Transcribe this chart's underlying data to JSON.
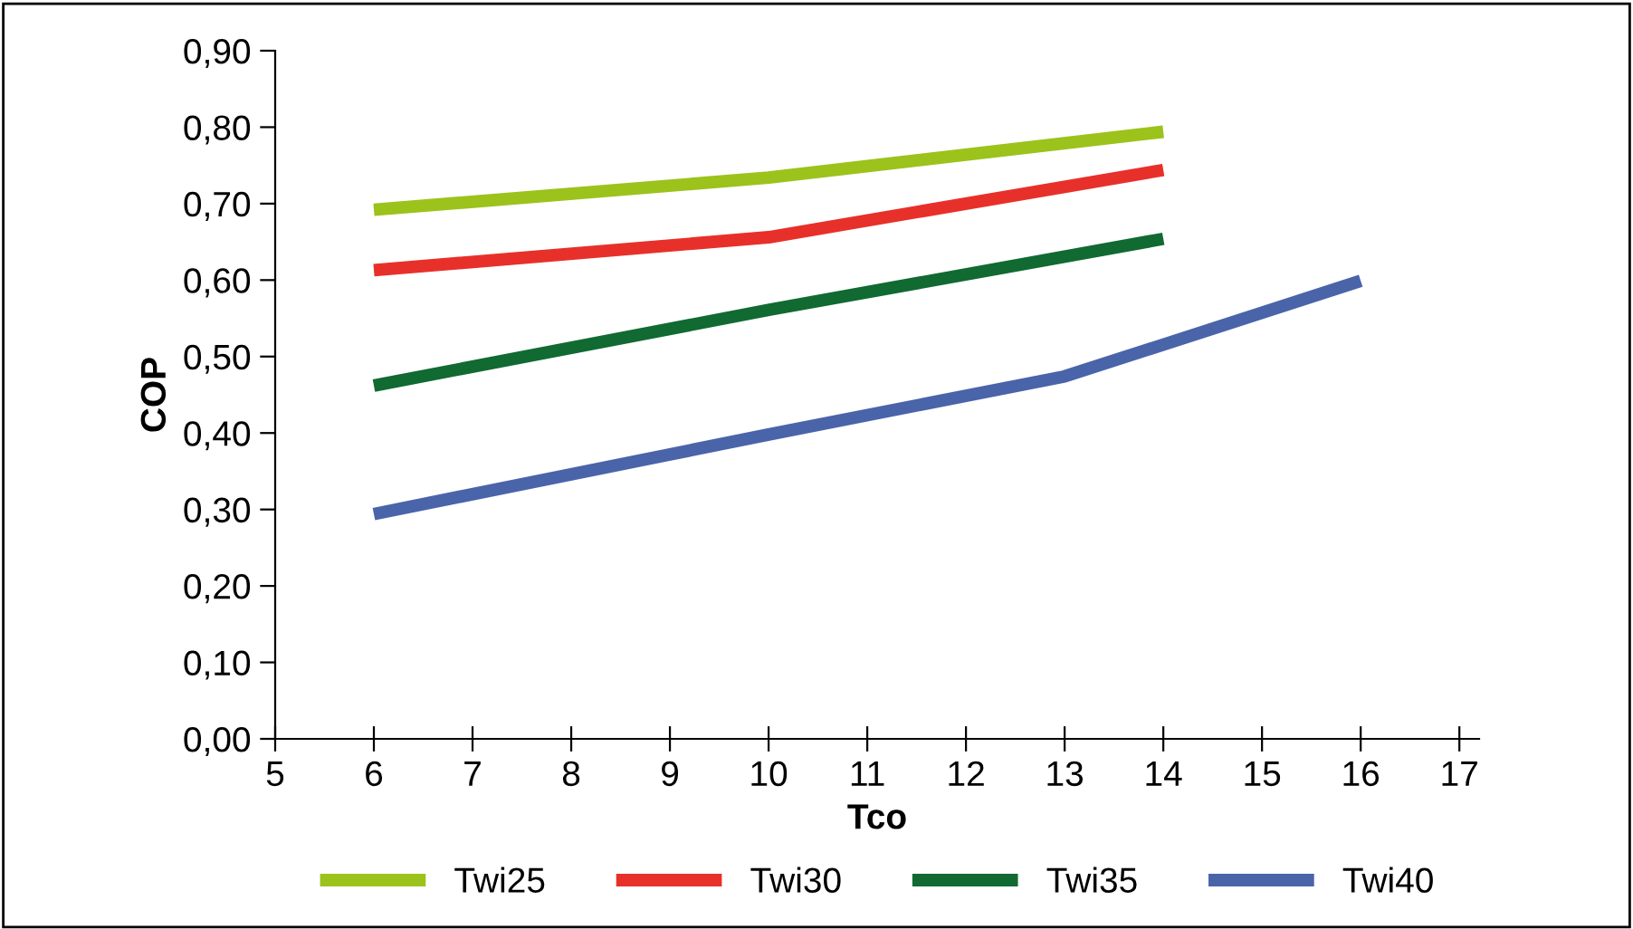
{
  "chart_data": {
    "type": "line",
    "xlabel": "Tco",
    "ylabel": "COP",
    "series": [
      {
        "name": "Twi25",
        "color": "#9bc31c",
        "x": [
          6,
          10,
          14
        ],
        "values": [
          0.692,
          0.734,
          0.794
        ]
      },
      {
        "name": "Twi30",
        "color": "#e8302a",
        "x": [
          6,
          10,
          14
        ],
        "values": [
          0.613,
          0.656,
          0.744
        ]
      },
      {
        "name": "Twi35",
        "color": "#106a32",
        "x": [
          6,
          10,
          14
        ],
        "values": [
          0.462,
          0.561,
          0.654
        ]
      },
      {
        "name": "Twi40",
        "color": "#4a64aa",
        "x": [
          6,
          10,
          13,
          16
        ],
        "values": [
          0.294,
          0.398,
          0.474,
          0.599
        ]
      }
    ],
    "xlim": [
      5,
      17.2
    ],
    "xticks": [
      5,
      6,
      7,
      8,
      9,
      10,
      11,
      12,
      13,
      14,
      15,
      16,
      17
    ],
    "ylim": [
      0,
      0.9
    ],
    "yticks": [
      {
        "value": 0,
        "label": "0,00"
      },
      {
        "value": 0.1,
        "label": "0,10"
      },
      {
        "value": 0.2,
        "label": "0,20"
      },
      {
        "value": 0.3,
        "label": "0,30"
      },
      {
        "value": 0.4,
        "label": "0,40"
      },
      {
        "value": 0.5,
        "label": "0,50"
      },
      {
        "value": 0.6,
        "label": "0,60"
      },
      {
        "value": 0.7,
        "label": "0,70"
      },
      {
        "value": 0.8,
        "label": "0,80"
      },
      {
        "value": 0.9,
        "label": "0,90"
      }
    ],
    "grid": false,
    "legend": "bottom",
    "marker": "none",
    "line_style": "solid"
  }
}
